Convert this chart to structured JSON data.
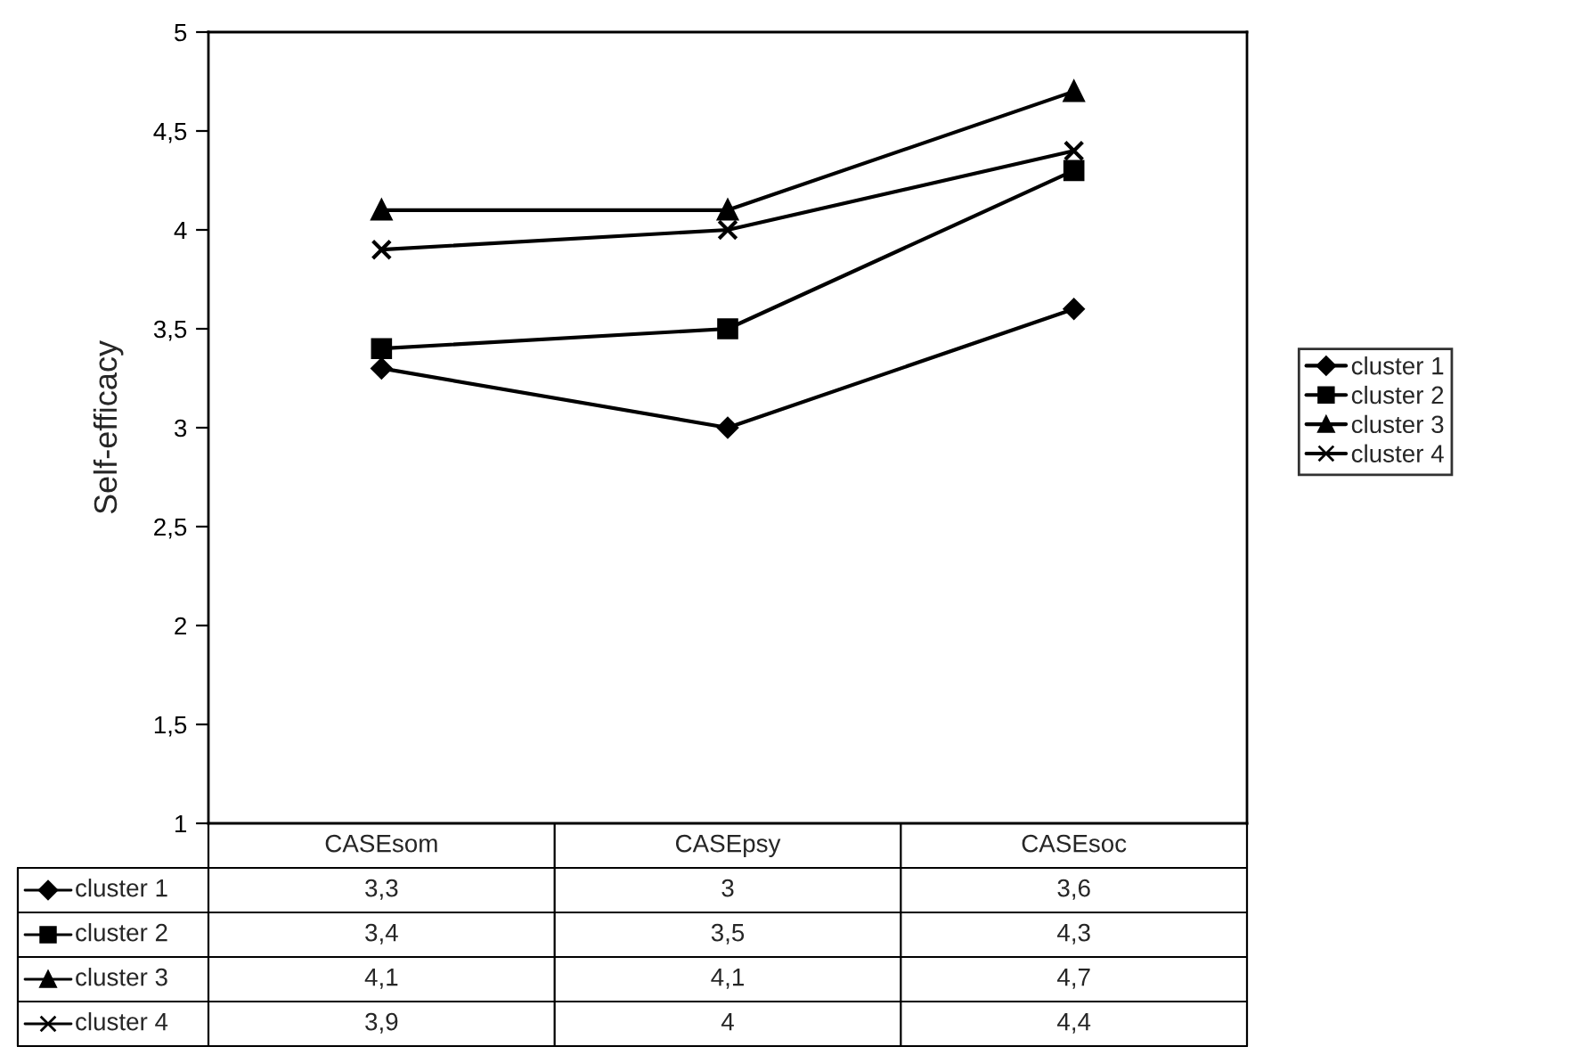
{
  "chart_data": {
    "type": "line",
    "ylabel": "Self-efficacy",
    "categories": [
      "CASEsom",
      "CASEpsy",
      "CASEsoc"
    ],
    "series": [
      {
        "name": "cluster 1",
        "color": "#000000",
        "marker": "diamond",
        "values": [
          3.3,
          3,
          3.6
        ],
        "value_labels": [
          "3,3",
          "3",
          "3,6"
        ]
      },
      {
        "name": "cluster 2",
        "color": "#000000",
        "marker": "square",
        "values": [
          3.4,
          3.5,
          4.3
        ],
        "value_labels": [
          "3,4",
          "3,5",
          "4,3"
        ]
      },
      {
        "name": "cluster 3",
        "color": "#000000",
        "marker": "triangle",
        "values": [
          4.1,
          4.1,
          4.7
        ],
        "value_labels": [
          "4,1",
          "4,1",
          "4,7"
        ]
      },
      {
        "name": "cluster 4",
        "color": "#000000",
        "marker": "cross",
        "values": [
          3.9,
          4,
          4.4
        ],
        "value_labels": [
          "3,9",
          "4",
          "4,4"
        ]
      }
    ],
    "ylim": [
      1,
      5
    ],
    "yticks": [
      1,
      {
        "value": 1.5,
        "label": "1,5"
      },
      2,
      {
        "value": 2.5,
        "label": "2,5"
      },
      3,
      {
        "value": 3.5,
        "label": "3,5"
      },
      4,
      {
        "value": 4.5,
        "label": "4,5"
      },
      5
    ],
    "grid": false,
    "legend": "right",
    "line_style": "solid"
  }
}
